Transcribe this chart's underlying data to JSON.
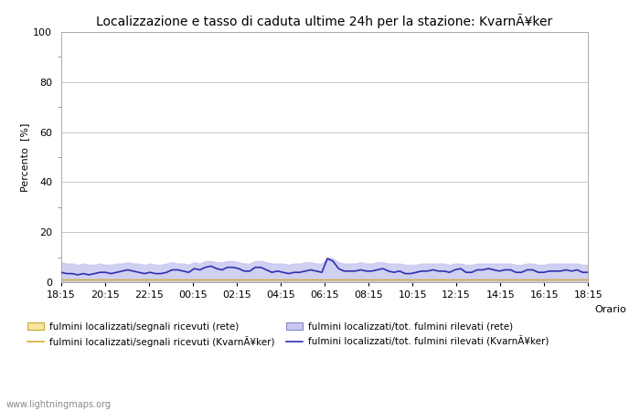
{
  "title": "Localizzazione e tasso di caduta ultime 24h per la stazione: KvarnÃ¥ker",
  "xlabel": "Orario",
  "ylabel": "Percento  [%]",
  "ylim": [
    0,
    100
  ],
  "yticks_major": [
    0,
    20,
    40,
    60,
    80,
    100
  ],
  "yticks_minor": [
    10,
    30,
    50,
    70,
    90
  ],
  "xtick_labels": [
    "18:15",
    "20:15",
    "22:15",
    "00:15",
    "02:15",
    "04:15",
    "06:15",
    "08:15",
    "10:15",
    "12:15",
    "14:15",
    "16:15",
    "18:15"
  ],
  "background_color": "#ffffff",
  "plot_bg_color": "#ffffff",
  "watermark": "www.lightningmaps.org",
  "legend": [
    {
      "label": "fulmini localizzati/segnali ricevuti (rete)",
      "fill_color": "#f5e6a0",
      "edge_color": "#d4b84a"
    },
    {
      "label": "fulmini localizzati/segnali ricevuti (KvarnÃ¥ker)",
      "line_color": "#d4aa30"
    },
    {
      "label": "fulmini localizzati/tot. fulmini rilevati (rete)",
      "fill_color": "#c8c8f0",
      "edge_color": "#9090c0"
    },
    {
      "label": "fulmini localizzati/tot. fulmini rilevati (KvarnÃ¥ker)",
      "line_color": "#3030b0"
    }
  ],
  "n_points": 96,
  "rete_fill": [
    1.0,
    1.0,
    1.0,
    1.0,
    1.0,
    1.0,
    1.0,
    1.0,
    1.0,
    1.0,
    1.0,
    1.0,
    1.0,
    1.0,
    1.0,
    1.0,
    1.0,
    1.0,
    1.0,
    1.0,
    1.0,
    1.0,
    1.0,
    1.0,
    1.0,
    1.0,
    1.0,
    1.0,
    1.0,
    1.0,
    1.0,
    1.0,
    1.0,
    1.0,
    1.0,
    1.0,
    1.0,
    1.0,
    1.0,
    1.0,
    1.0,
    1.0,
    1.0,
    1.0,
    1.0,
    1.0,
    1.0,
    1.0,
    1.0,
    1.0,
    1.0,
    1.0,
    1.0,
    1.0,
    1.0,
    1.0,
    1.0,
    1.0,
    1.0,
    1.0,
    1.0,
    1.0,
    1.0,
    1.0,
    1.0,
    1.0,
    1.0,
    1.0,
    1.0,
    1.0,
    1.0,
    1.0,
    1.0,
    1.0,
    1.0,
    1.0,
    1.0,
    1.0,
    1.0,
    1.0,
    1.0,
    1.0,
    1.0,
    1.0,
    1.0,
    1.0,
    1.0,
    1.0,
    1.0,
    1.0,
    1.0,
    1.0,
    1.0,
    1.0,
    1.0,
    1.0
  ],
  "kvarn_segnali": [
    1.0,
    1.0,
    1.0,
    1.0,
    1.0,
    1.0,
    1.0,
    1.0,
    1.0,
    1.0,
    1.0,
    1.0,
    1.0,
    1.0,
    1.0,
    1.0,
    1.0,
    1.0,
    1.0,
    1.0,
    1.0,
    1.0,
    1.0,
    1.0,
    1.0,
    1.0,
    1.0,
    1.0,
    1.0,
    1.0,
    1.0,
    1.0,
    1.0,
    1.0,
    1.0,
    1.0,
    1.0,
    1.0,
    1.0,
    1.0,
    1.0,
    1.0,
    1.0,
    1.0,
    1.0,
    1.0,
    1.0,
    1.0,
    1.0,
    1.0,
    1.0,
    1.0,
    1.0,
    1.0,
    1.0,
    1.0,
    1.0,
    1.0,
    1.0,
    1.0,
    1.0,
    1.0,
    1.0,
    1.0,
    1.0,
    1.0,
    1.0,
    1.0,
    1.0,
    1.0,
    1.0,
    1.0,
    1.0,
    1.0,
    1.0,
    1.0,
    1.0,
    1.0,
    1.0,
    1.0,
    1.0,
    1.0,
    1.0,
    1.0,
    1.0,
    1.0,
    1.0,
    1.0,
    1.0,
    1.0,
    1.0,
    1.0,
    1.0,
    1.0,
    1.0,
    1.0
  ],
  "tot_fill": [
    8.0,
    7.5,
    7.5,
    7.0,
    7.5,
    7.0,
    7.0,
    7.5,
    7.0,
    7.0,
    7.5,
    7.5,
    8.0,
    7.5,
    7.5,
    7.0,
    7.5,
    7.0,
    7.0,
    7.5,
    8.0,
    7.5,
    7.5,
    7.0,
    8.0,
    7.5,
    8.5,
    8.5,
    8.0,
    8.0,
    8.5,
    8.5,
    8.0,
    7.5,
    7.5,
    8.5,
    8.5,
    8.0,
    7.5,
    7.5,
    7.5,
    7.0,
    7.5,
    7.5,
    8.0,
    8.0,
    7.5,
    7.5,
    10.0,
    9.5,
    8.0,
    7.5,
    7.5,
    7.5,
    8.0,
    7.5,
    7.5,
    8.0,
    8.0,
    7.5,
    7.5,
    7.5,
    7.0,
    7.0,
    7.0,
    7.5,
    7.5,
    7.5,
    7.5,
    7.5,
    7.0,
    7.5,
    7.5,
    7.0,
    7.0,
    7.5,
    7.5,
    7.5,
    7.5,
    7.5,
    7.5,
    7.5,
    7.0,
    7.0,
    7.5,
    7.5,
    7.0,
    7.0,
    7.5,
    7.5,
    7.5,
    7.5,
    7.5,
    7.5,
    7.0,
    7.0
  ],
  "kvarn_tot": [
    4.0,
    3.5,
    3.5,
    3.0,
    3.5,
    3.0,
    3.5,
    4.0,
    4.0,
    3.5,
    4.0,
    4.5,
    5.0,
    4.5,
    4.0,
    3.5,
    4.0,
    3.5,
    3.5,
    4.0,
    5.0,
    5.0,
    4.5,
    4.0,
    5.5,
    5.0,
    6.0,
    6.5,
    5.5,
    5.0,
    6.0,
    6.0,
    5.5,
    4.5,
    4.5,
    6.0,
    6.0,
    5.0,
    4.0,
    4.5,
    4.0,
    3.5,
    4.0,
    4.0,
    4.5,
    5.0,
    4.5,
    4.0,
    9.5,
    8.5,
    5.5,
    4.5,
    4.5,
    4.5,
    5.0,
    4.5,
    4.5,
    5.0,
    5.5,
    4.5,
    4.0,
    4.5,
    3.5,
    3.5,
    4.0,
    4.5,
    4.5,
    5.0,
    4.5,
    4.5,
    4.0,
    5.0,
    5.5,
    4.0,
    4.0,
    5.0,
    5.0,
    5.5,
    5.0,
    4.5,
    5.0,
    5.0,
    4.0,
    4.0,
    5.0,
    5.0,
    4.0,
    4.0,
    4.5,
    4.5,
    4.5,
    5.0,
    4.5,
    5.0,
    4.0,
    4.0
  ]
}
